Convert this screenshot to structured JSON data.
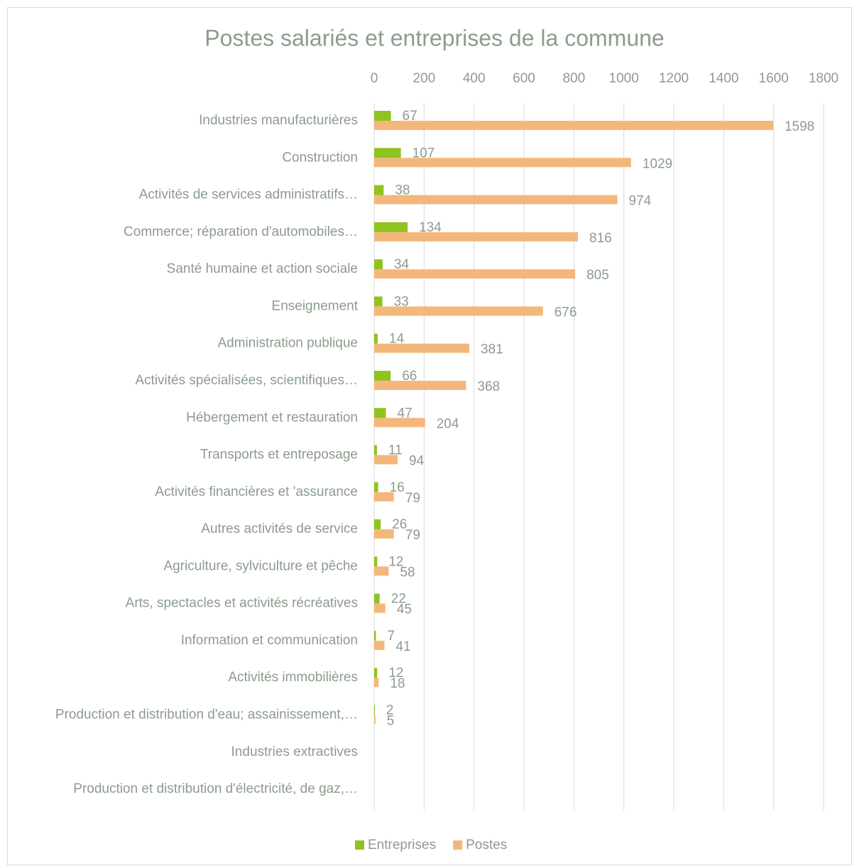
{
  "chart_data": {
    "type": "barh",
    "title": "Postes salariés et entreprises de la commune",
    "categories": [
      "Industries manufacturières",
      "Construction",
      "Activités de services administratifs…",
      "Commerce; réparation d'automobiles…",
      "Santé humaine et action sociale",
      "Enseignement",
      "Administration publique",
      "Activités spécialisées, scientifiques…",
      "Hébergement et restauration",
      "Transports et entreposage",
      "Activités financières et 'assurance",
      "Autres activités de service",
      "Agriculture, sylviculture et pêche",
      "Arts, spectacles et activités récréatives",
      "Information et communication",
      "Activités immobilières",
      "Production et distribution d'eau; assainissement,…",
      "Industries extractives",
      "Production et distribution d'électricité, de gaz,…"
    ],
    "series": [
      {
        "name": "Entreprises",
        "color": "#8fc31f",
        "values": [
          67,
          107,
          38,
          134,
          34,
          33,
          14,
          66,
          47,
          11,
          16,
          26,
          12,
          22,
          7,
          12,
          2,
          null,
          null
        ]
      },
      {
        "name": "Postes",
        "color": "#f4b77b",
        "values": [
          1598,
          1029,
          974,
          816,
          805,
          676,
          381,
          368,
          204,
          94,
          79,
          79,
          58,
          45,
          41,
          18,
          5,
          null,
          null
        ]
      }
    ],
    "xlim": [
      0,
      1800
    ],
    "xticks": [
      0,
      200,
      400,
      600,
      800,
      1000,
      1200,
      1400,
      1600,
      1800
    ],
    "grid": true,
    "legend": "bottom"
  }
}
